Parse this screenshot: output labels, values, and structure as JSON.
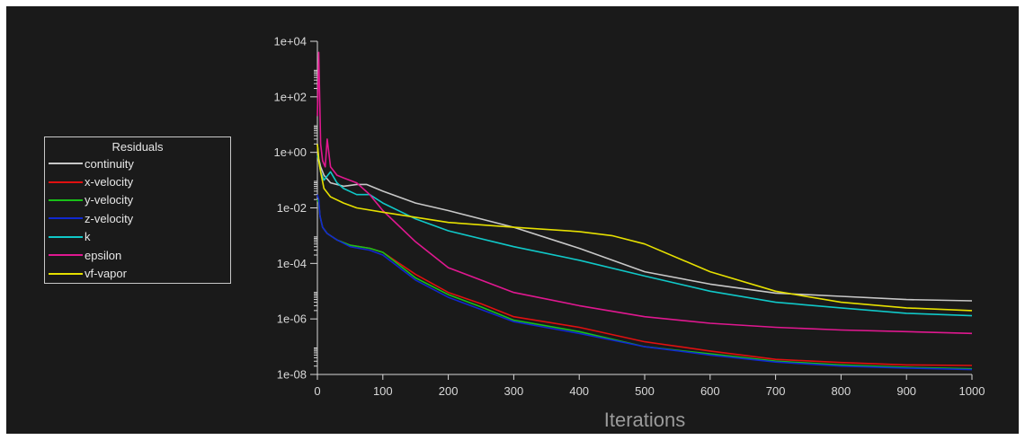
{
  "chart_data": {
    "type": "line",
    "title": "",
    "xlabel": "Iterations",
    "ylabel": "",
    "xlim": [
      0,
      1000
    ],
    "ylim": [
      1e-08,
      10000.0
    ],
    "yscale": "log",
    "grid": false,
    "legend_position": "left",
    "legend_title": "Residuals",
    "x_ticks": [
      0,
      100,
      200,
      300,
      400,
      500,
      600,
      700,
      800,
      900,
      1000
    ],
    "x_tick_labels": [
      "0",
      "100",
      "200",
      "300",
      "400",
      "500",
      "600",
      "700",
      "800",
      "900",
      "1000"
    ],
    "y_ticks": [
      1e-08,
      1e-06,
      0.0001,
      0.01,
      1,
      100,
      10000
    ],
    "y_tick_labels": [
      "1e-08",
      "1e-06",
      "1e-04",
      "1e-02",
      "1e+00",
      "1e+02",
      "1e+04"
    ],
    "series": [
      {
        "name": "continuity",
        "color": "#c8c8c8",
        "x": [
          0,
          2,
          5,
          10,
          20,
          40,
          60,
          75,
          100,
          150,
          200,
          300,
          400,
          500,
          600,
          700,
          800,
          900,
          1000
        ],
        "y": [
          2,
          0.6,
          0.3,
          0.15,
          0.08,
          0.06,
          0.07,
          0.07,
          0.04,
          0.015,
          0.008,
          0.002,
          0.00035,
          5e-05,
          1.8e-05,
          8.5e-06,
          6.5e-06,
          5e-06,
          4.5e-06
        ]
      },
      {
        "name": "x-velocity",
        "color": "#e01010",
        "x": [
          0,
          2,
          4,
          8,
          15,
          30,
          50,
          80,
          100,
          150,
          200,
          250,
          300,
          400,
          500,
          600,
          700,
          800,
          900,
          1000
        ],
        "y": [
          0.02,
          0.015,
          0.005,
          0.002,
          0.0012,
          0.0007,
          0.00045,
          0.00035,
          0.00025,
          4e-05,
          9e-06,
          3.5e-06,
          1.2e-06,
          5e-07,
          1.5e-07,
          7e-08,
          3.5e-08,
          2.7e-08,
          2.2e-08,
          2.1e-08
        ]
      },
      {
        "name": "y-velocity",
        "color": "#18c018",
        "x": [
          0,
          2,
          4,
          8,
          15,
          30,
          50,
          80,
          100,
          150,
          200,
          250,
          300,
          400,
          500,
          600,
          700,
          800,
          900,
          1000
        ],
        "y": [
          0.02,
          0.015,
          0.005,
          0.002,
          0.0012,
          0.0007,
          0.00045,
          0.00035,
          0.00025,
          3e-05,
          7.5e-06,
          2.7e-06,
          9e-07,
          3.5e-07,
          1e-07,
          5.5e-08,
          3e-08,
          2.2e-08,
          1.8e-08,
          1.6e-08
        ]
      },
      {
        "name": "z-velocity",
        "color": "#1028d0",
        "x": [
          0,
          2,
          4,
          8,
          15,
          30,
          50,
          80,
          100,
          150,
          200,
          250,
          300,
          400,
          500,
          600,
          700,
          800,
          900,
          1000
        ],
        "y": [
          0.03,
          0.02,
          0.005,
          0.002,
          0.0012,
          0.0007,
          0.0004,
          0.0003,
          0.0002,
          2.5e-05,
          6e-06,
          2.2e-06,
          8e-07,
          3e-07,
          1e-07,
          5e-08,
          2.8e-08,
          2e-08,
          1.7e-08,
          1.5e-08
        ]
      },
      {
        "name": "k",
        "color": "#10c8c8",
        "x": [
          0,
          2,
          5,
          10,
          20,
          30,
          40,
          60,
          80,
          100,
          150,
          200,
          300,
          400,
          500,
          600,
          700,
          800,
          900,
          1000
        ],
        "y": [
          0.8,
          0.5,
          0.2,
          0.1,
          0.2,
          0.08,
          0.05,
          0.03,
          0.03,
          0.015,
          0.004,
          0.0015,
          0.0004,
          0.00013,
          3.5e-05,
          1e-05,
          4e-06,
          2.5e-06,
          1.6e-06,
          1.3e-06
        ]
      },
      {
        "name": "epsilon",
        "color": "#e01890",
        "x": [
          0,
          2,
          5,
          8,
          12,
          15,
          20,
          30,
          40,
          60,
          80,
          100,
          150,
          200,
          300,
          400,
          500,
          600,
          700,
          800,
          900,
          1000
        ],
        "y": [
          20,
          4000,
          2,
          0.5,
          0.3,
          3,
          0.3,
          0.15,
          0.12,
          0.08,
          0.03,
          0.008,
          0.0006,
          7e-05,
          9e-06,
          3e-06,
          1.2e-06,
          7e-07,
          5e-07,
          4e-07,
          3.5e-07,
          3e-07
        ]
      },
      {
        "name": "vf-vapor",
        "color": "#e6e000",
        "x": [
          0,
          2,
          5,
          10,
          20,
          40,
          60,
          100,
          200,
          300,
          400,
          450,
          500,
          600,
          700,
          800,
          900,
          1000
        ],
        "y": [
          2,
          0.5,
          0.2,
          0.05,
          0.025,
          0.015,
          0.01,
          0.007,
          0.003,
          0.002,
          0.0014,
          0.001,
          0.0005,
          5e-05,
          1e-05,
          4e-06,
          2.5e-06,
          2e-06
        ]
      }
    ]
  }
}
